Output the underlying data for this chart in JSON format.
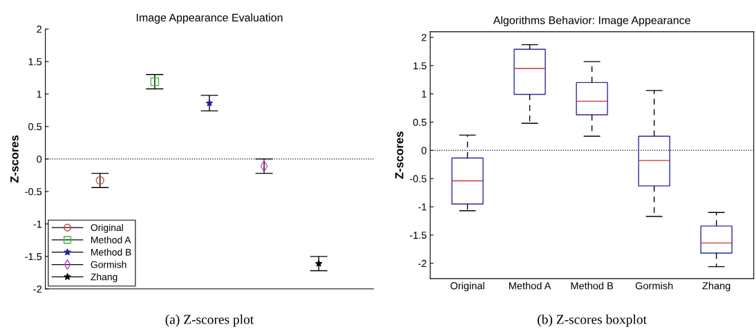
{
  "chart_data": [
    {
      "type": "scatter",
      "title": "Image Appearance Evaluation",
      "ylabel": "Z-scores",
      "categories": [
        null,
        null,
        null,
        null,
        null
      ],
      "series": [
        {
          "name": "Original",
          "color": "#c04040",
          "marker": "circle",
          "values": [
            -0.33,
            null,
            null,
            null,
            null
          ],
          "errors": [
            0.11,
            null,
            null,
            null,
            null
          ]
        },
        {
          "name": "Method A",
          "color": "#30c030",
          "marker": "square",
          "values": [
            null,
            1.19,
            null,
            null,
            null
          ],
          "errors": [
            null,
            0.11,
            null,
            null,
            null
          ]
        },
        {
          "name": "Method B",
          "color": "#20209a",
          "marker": "star",
          "values": [
            null,
            null,
            0.86,
            null,
            null
          ],
          "errors": [
            null,
            null,
            0.12,
            null,
            null
          ]
        },
        {
          "name": "Gormish",
          "color": "#c040c0",
          "marker": "diamond",
          "values": [
            null,
            null,
            null,
            -0.11,
            null
          ],
          "errors": [
            null,
            null,
            null,
            0.11,
            null
          ]
        },
        {
          "name": "Zhang",
          "color": "#000000",
          "marker": "star",
          "values": [
            null,
            null,
            null,
            null,
            -1.61
          ],
          "errors": [
            null,
            null,
            null,
            null,
            0.11
          ]
        }
      ],
      "ylim": [
        -2,
        2
      ],
      "yticks": [
        -2,
        -1.5,
        -1,
        -0.5,
        0,
        0.5,
        1,
        1.5,
        2
      ],
      "tick_labels": "y",
      "grid": false,
      "legend": "bottom left",
      "ref_lines": [
        {
          "axis": "y",
          "value": 0,
          "color": "#000000",
          "line_style": "dotted"
        }
      ],
      "annotations": [
        "(a) Z-scores plot"
      ]
    },
    {
      "type": "box",
      "title": "Algorithms Behavior: Image Appearance",
      "ylabel": "Z-scores",
      "categories": [
        "Original",
        "Method A",
        "Method B",
        "Gormish",
        "Zhang"
      ],
      "series": [
        {
          "color": "#2a2a9c",
          "boxes": [
            {
              "low": -1.07,
              "q1": -0.95,
              "median": -0.54,
              "q3": -0.135,
              "high": 0.27
            },
            {
              "low": 0.48,
              "q1": 0.99,
              "median": 1.45,
              "q3": 1.79,
              "high": 1.87
            },
            {
              "low": 0.25,
              "q1": 0.63,
              "median": 0.87,
              "q3": 1.2,
              "high": 1.57
            },
            {
              "low": -1.17,
              "q1": -0.63,
              "median": -0.18,
              "q3": 0.25,
              "high": 1.06
            },
            {
              "low": -2.06,
              "q1": -1.82,
              "median": -1.64,
              "q3": -1.34,
              "high": -1.1
            }
          ]
        }
      ],
      "ylim": [
        -2.27,
        2.1
      ],
      "yticks": [
        -2,
        -1.5,
        -1,
        -0.5,
        0,
        0.5,
        1,
        1.5,
        2
      ],
      "grid": false,
      "ref_lines": [
        {
          "axis": "y",
          "value": 0,
          "color": "#000000",
          "line_style": "dotted"
        }
      ],
      "annotations": [
        "(b) Z-scores boxplot"
      ]
    }
  ]
}
